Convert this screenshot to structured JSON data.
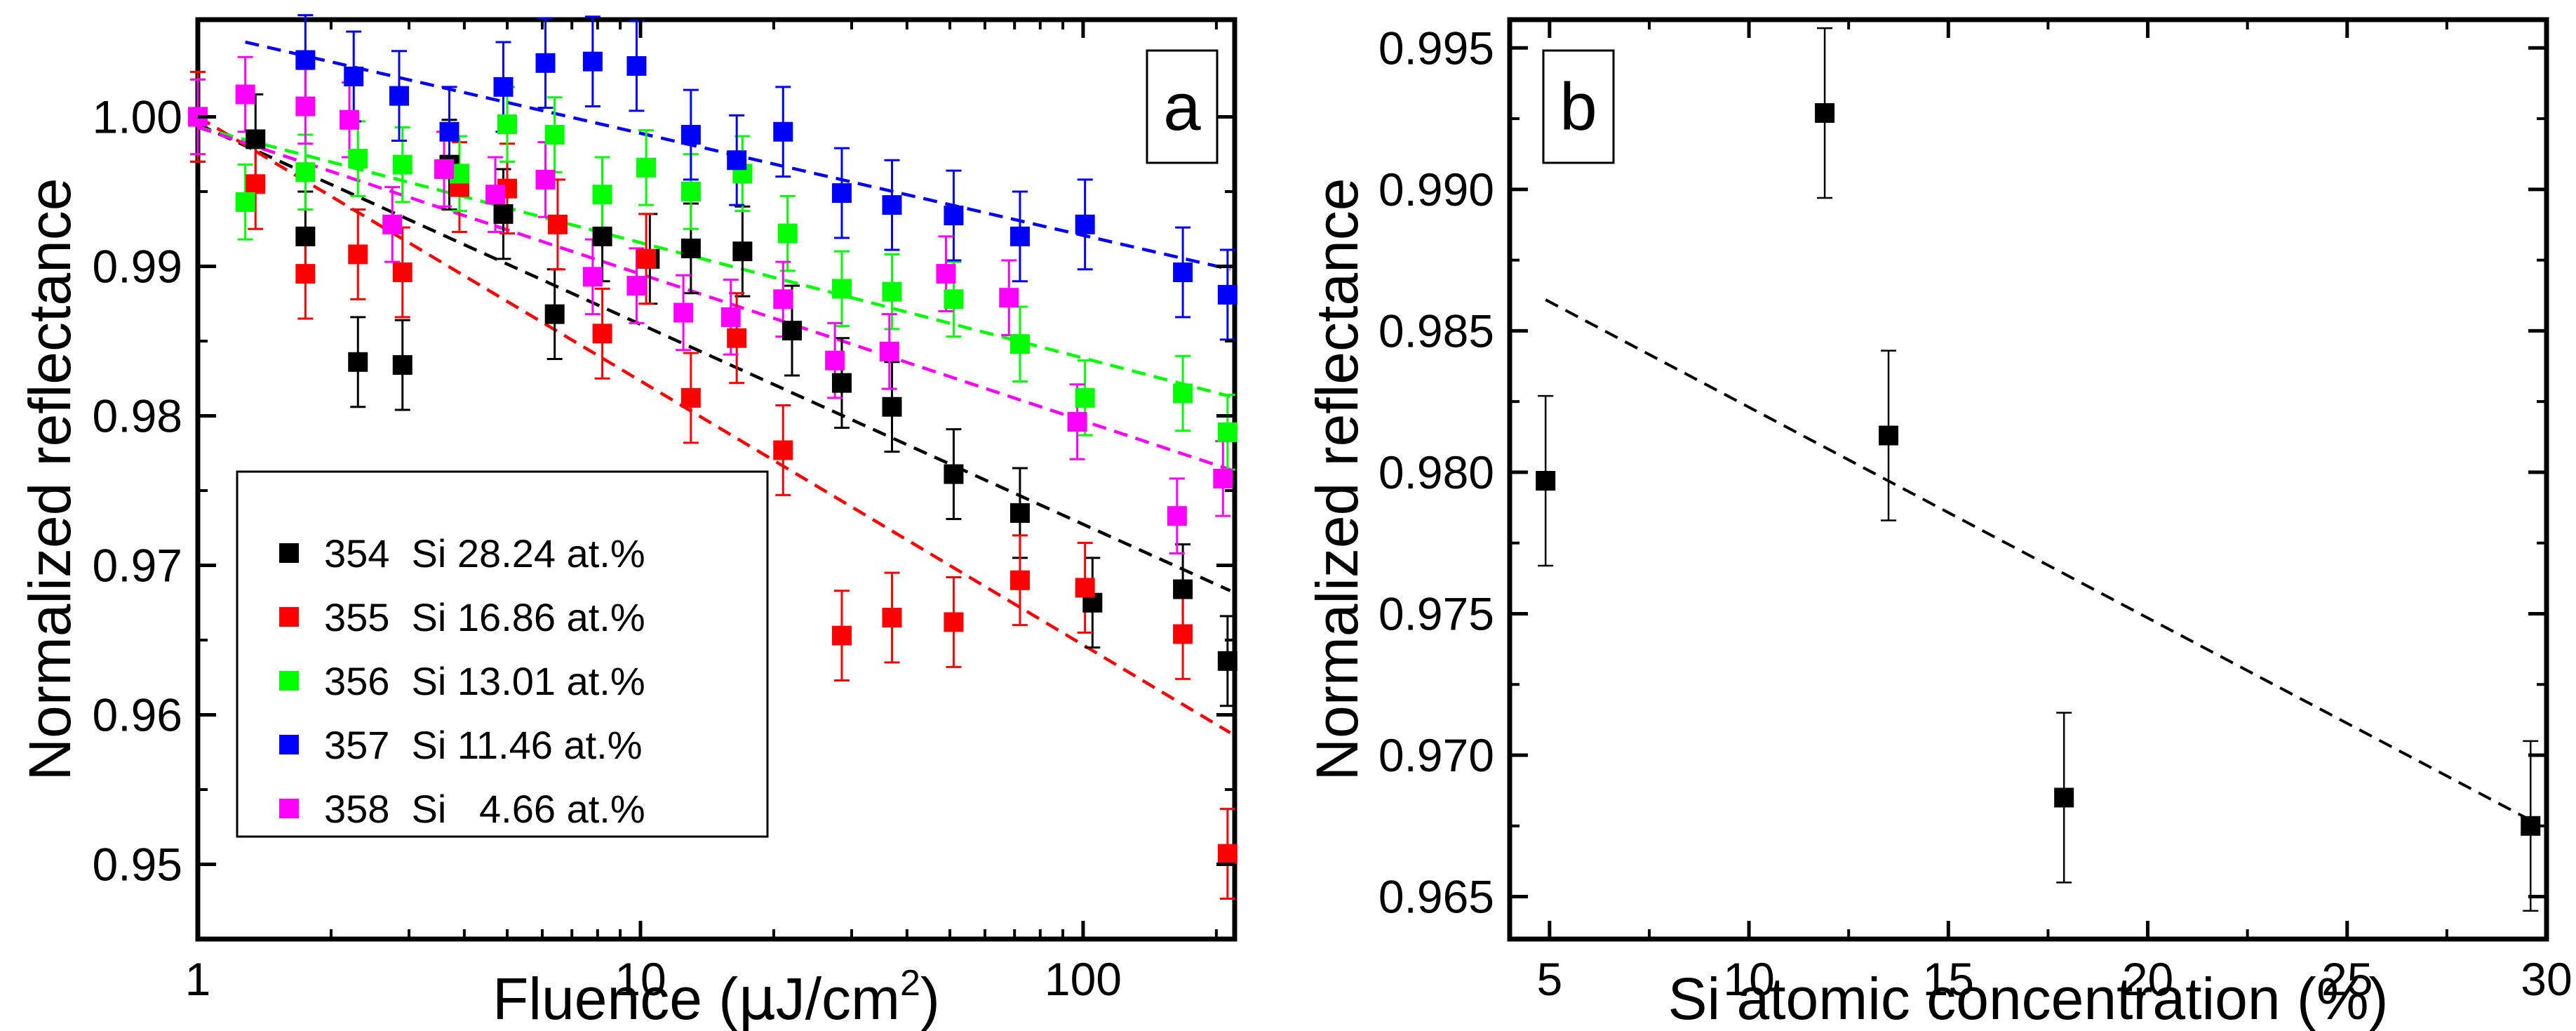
{
  "chart_data": [
    {
      "panel": "a",
      "type": "scatter",
      "panel_label": "a",
      "title": "",
      "xlabel_prefix": "Fluence (",
      "xlabel_mu": "μ",
      "xlabel_unit": "J/cm",
      "xlabel_sup": "2",
      "xlabel_suffix": ")",
      "ylabel": "Normalized reflectance",
      "xscale": "log",
      "xlim": [
        1,
        220
      ],
      "ylim": [
        0.945,
        1.0065
      ],
      "xticks": [
        1,
        10,
        100
      ],
      "xtick_labels": [
        "1",
        "10",
        "100"
      ],
      "yticks": [
        0.95,
        0.96,
        0.97,
        0.98,
        0.99,
        1.0
      ],
      "ytick_labels": [
        "0.95",
        "0.96",
        "0.97",
        "0.98",
        "0.99",
        "1.00"
      ],
      "legend_position": "bottom-left",
      "series": [
        {
          "name": "354  Si 28.24 at.%",
          "color": "#000000",
          "x": [
            1,
            1.35,
            1.75,
            2.3,
            2.9,
            3.7,
            4.9,
            6.4,
            8.2,
            10.5,
            13,
            17,
            22,
            28.5,
            37,
            51,
            72,
            105,
            168,
            212
          ],
          "y": [
            1.0,
            0.9985,
            0.992,
            0.9836,
            0.9834,
            0.9968,
            0.9935,
            0.9868,
            0.992,
            0.9905,
            0.9912,
            0.991,
            0.9857,
            0.9822,
            0.9806,
            0.9761,
            0.9735,
            0.9675,
            0.9684,
            0.9636
          ],
          "err": [
            0.003,
            0.003,
            0.003,
            0.003,
            0.003,
            0.003,
            0.003,
            0.003,
            0.003,
            0.003,
            0.003,
            0.003,
            0.003,
            0.003,
            0.003,
            0.003,
            0.003,
            0.003,
            0.003,
            0.003
          ],
          "fit": [
            0.9995,
            0.9683
          ]
        },
        {
          "name": "355  Si 16.86 at.%",
          "color": "#ff0000",
          "x": [
            1,
            1.35,
            1.75,
            2.3,
            2.9,
            3.9,
            5,
            6.5,
            8.2,
            10.3,
            13,
            16.5,
            21,
            28.5,
            37,
            51,
            72,
            101,
            168,
            212
          ],
          "y": [
            1.0,
            0.9955,
            0.9895,
            0.9908,
            0.9896,
            0.9953,
            0.9952,
            0.9928,
            0.9855,
            0.9905,
            0.9812,
            0.9852,
            0.9777,
            0.9653,
            0.9665,
            0.9662,
            0.969,
            0.9685,
            0.9654,
            0.9507
          ],
          "err": [
            0.003,
            0.003,
            0.003,
            0.003,
            0.003,
            0.003,
            0.003,
            0.003,
            0.003,
            0.003,
            0.003,
            0.003,
            0.003,
            0.003,
            0.003,
            0.003,
            0.003,
            0.003,
            0.003,
            0.003
          ],
          "fit": [
            1.0,
            0.9588
          ]
        },
        {
          "name": "356  Si 13.01 at.%",
          "color": "#00ff00",
          "x": [
            1,
            1.28,
            1.75,
            2.3,
            2.9,
            3.9,
            5,
            6.4,
            8.2,
            10.3,
            13,
            17,
            21.5,
            28.5,
            37,
            51,
            72,
            101,
            168,
            212
          ],
          "y": [
            1.0,
            0.9943,
            0.9963,
            0.9972,
            0.9968,
            0.9962,
            0.9995,
            0.9988,
            0.9948,
            0.9966,
            0.995,
            0.9962,
            0.9922,
            0.9885,
            0.9883,
            0.9878,
            0.9848,
            0.9812,
            0.9815,
            0.9789
          ],
          "err": [
            0.0025,
            0.0025,
            0.0025,
            0.0025,
            0.0025,
            0.0025,
            0.0025,
            0.0025,
            0.0025,
            0.0025,
            0.0025,
            0.0025,
            0.0025,
            0.0025,
            0.0025,
            0.0025,
            0.0025,
            0.0025,
            0.0025,
            0.0025
          ],
          "fit": [
            0.9993,
            0.9813
          ]
        },
        {
          "name": "357  Si 11.46 at.%",
          "color": "#0000ff",
          "x": [
            1.75,
            2.25,
            2.85,
            3.7,
            4.9,
            6.1,
            7.8,
            9.8,
            13,
            16.5,
            21,
            28.5,
            37,
            51,
            72,
            101,
            168,
            212
          ],
          "y": [
            1.0038,
            1.0027,
            1.0014,
            0.999,
            1.002,
            1.0036,
            1.0037,
            1.0034,
            0.9988,
            0.9971,
            0.999,
            0.9949,
            0.9941,
            0.9934,
            0.992,
            0.9928,
            0.9896,
            0.9881
          ],
          "err": [
            0.003,
            0.003,
            0.003,
            0.003,
            0.003,
            0.003,
            0.003,
            0.003,
            0.003,
            0.003,
            0.003,
            0.003,
            0.003,
            0.003,
            0.003,
            0.003,
            0.003,
            0.003
          ],
          "fit": [
            1.005,
            0.9898
          ],
          "fit_x_start": 1.28
        },
        {
          "name": "358  Si   4.66 at.%",
          "color": "#ff00ff",
          "x": [
            1,
            1.28,
            1.75,
            2.2,
            2.75,
            3.6,
            4.7,
            6.1,
            7.8,
            9.8,
            12.5,
            16,
            21,
            27.5,
            36.5,
            49,
            68,
            97,
            163,
            207
          ],
          "y": [
            1.0,
            1.0015,
            1.0007,
            0.9998,
            0.9928,
            0.9965,
            0.9948,
            0.9958,
            0.9893,
            0.9887,
            0.9869,
            0.9866,
            0.9878,
            0.9837,
            0.9843,
            0.9895,
            0.9879,
            0.9796,
            0.9733,
            0.9758
          ],
          "err": [
            0.0025,
            0.0025,
            0.0025,
            0.0025,
            0.0025,
            0.0025,
            0.0025,
            0.0025,
            0.0025,
            0.0025,
            0.0025,
            0.0025,
            0.0025,
            0.0025,
            0.0025,
            0.0025,
            0.0025,
            0.0025,
            0.0025,
            0.0025
          ],
          "fit": [
            0.9993,
            0.9764
          ]
        }
      ]
    },
    {
      "panel": "b",
      "type": "scatter",
      "panel_label": "b",
      "title": "",
      "xlabel": "Si atomic concentration (%)",
      "ylabel": "Normalized reflectance",
      "xlim": [
        4,
        30
      ],
      "ylim": [
        0.9635,
        0.996
      ],
      "xticks": [
        5,
        10,
        15,
        20,
        25,
        30
      ],
      "xtick_labels": [
        "5",
        "10",
        "15",
        "20",
        "25",
        "30"
      ],
      "yticks": [
        0.965,
        0.97,
        0.975,
        0.98,
        0.985,
        0.99,
        0.995
      ],
      "ytick_labels": [
        "0.965",
        "0.970",
        "0.975",
        "0.980",
        "0.985",
        "0.990",
        "0.995"
      ],
      "points": [
        {
          "x": 4.9,
          "y": 0.9797,
          "err": 0.003
        },
        {
          "x": 11.9,
          "y": 0.9927,
          "err": 0.003
        },
        {
          "x": 13.5,
          "y": 0.9813,
          "err": 0.003
        },
        {
          "x": 17.9,
          "y": 0.9685,
          "err": 0.003
        },
        {
          "x": 29.6,
          "y": 0.9675,
          "err": 0.003
        }
      ],
      "fit": {
        "x": [
          4.9,
          29.6
        ],
        "y": [
          0.9861,
          0.9677
        ]
      }
    }
  ]
}
